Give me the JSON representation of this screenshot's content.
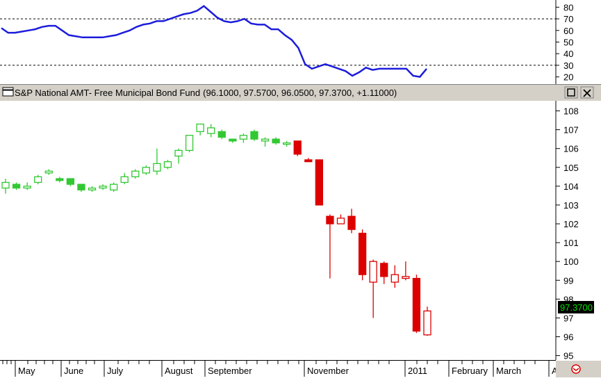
{
  "chart_data": [
    {
      "type": "line",
      "ylim": [
        15,
        85
      ],
      "yticks": [
        20,
        30,
        40,
        50,
        60,
        70,
        80
      ],
      "reference_lines": [
        30,
        70
      ],
      "line_color": "#1c1cdc",
      "values": [
        62,
        58,
        58,
        59,
        60,
        61,
        63,
        64,
        64,
        60,
        56,
        55,
        54,
        54,
        54,
        54,
        55,
        56,
        58,
        60,
        63,
        65,
        66,
        68,
        68,
        70,
        72,
        74,
        75,
        77,
        81,
        76,
        71,
        68,
        67,
        68,
        70,
        66,
        65,
        65,
        61,
        61,
        56,
        52,
        45,
        31,
        27,
        29,
        31,
        29,
        27,
        25,
        21,
        24,
        28,
        26,
        27,
        27,
        27,
        27,
        27,
        21,
        20,
        27
      ]
    },
    {
      "type": "candlestick",
      "title": "S&P National AMT- Free Municipal Bond Fund",
      "ohlc_text": "(96.1000, 97.5700, 96.0500, 97.3700, +1.11000)",
      "last_value_label": "97.3700",
      "ylim": [
        94.8,
        108.5
      ],
      "yticks": [
        95,
        96,
        97,
        98,
        99,
        100,
        101,
        102,
        103,
        104,
        105,
        106,
        107,
        108
      ],
      "xticks": [
        "May",
        "June",
        "July",
        "August",
        "September",
        "November",
        "2011",
        "February",
        "March",
        "A"
      ],
      "colors": {
        "up": "#32c832",
        "down": "#dc0000",
        "highlight_bg": "#000000",
        "highlight_fg": "#00e000"
      },
      "candles": [
        {
          "o": 103.9,
          "h": 104.4,
          "l": 103.6,
          "c": 104.2,
          "up": true,
          "solid": false
        },
        {
          "o": 104.1,
          "h": 104.2,
          "l": 103.8,
          "c": 103.9,
          "up": true,
          "solid": true
        },
        {
          "o": 103.9,
          "h": 104.2,
          "l": 103.8,
          "c": 104.0,
          "up": true,
          "solid": false
        },
        {
          "o": 104.2,
          "h": 104.6,
          "l": 104.1,
          "c": 104.5,
          "up": true,
          "solid": false
        },
        {
          "o": 104.7,
          "h": 104.9,
          "l": 104.6,
          "c": 104.8,
          "up": true,
          "solid": false
        },
        {
          "o": 104.4,
          "h": 104.5,
          "l": 104.2,
          "c": 104.3,
          "up": true,
          "solid": true
        },
        {
          "o": 104.4,
          "h": 104.4,
          "l": 104.0,
          "c": 104.1,
          "up": true,
          "solid": true
        },
        {
          "o": 104.1,
          "h": 104.1,
          "l": 103.7,
          "c": 103.8,
          "up": true,
          "solid": true
        },
        {
          "o": 103.8,
          "h": 104.0,
          "l": 103.7,
          "c": 103.9,
          "up": true,
          "solid": false
        },
        {
          "o": 103.9,
          "h": 104.1,
          "l": 103.8,
          "c": 104.0,
          "up": true,
          "solid": false
        },
        {
          "o": 103.8,
          "h": 104.2,
          "l": 103.7,
          "c": 104.1,
          "up": true,
          "solid": false
        },
        {
          "o": 104.2,
          "h": 104.7,
          "l": 104.1,
          "c": 104.5,
          "up": true,
          "solid": false
        },
        {
          "o": 104.5,
          "h": 104.9,
          "l": 104.4,
          "c": 104.8,
          "up": true,
          "solid": false
        },
        {
          "o": 104.7,
          "h": 105.1,
          "l": 104.6,
          "c": 105.0,
          "up": true,
          "solid": false
        },
        {
          "o": 104.8,
          "h": 106.0,
          "l": 104.6,
          "c": 105.2,
          "up": true,
          "solid": false
        },
        {
          "o": 105.0,
          "h": 105.4,
          "l": 104.9,
          "c": 105.3,
          "up": true,
          "solid": false
        },
        {
          "o": 105.6,
          "h": 106.0,
          "l": 105.2,
          "c": 105.9,
          "up": true,
          "solid": false
        },
        {
          "o": 105.9,
          "h": 106.7,
          "l": 105.8,
          "c": 106.7,
          "up": true,
          "solid": false
        },
        {
          "o": 106.9,
          "h": 107.3,
          "l": 106.7,
          "c": 107.3,
          "up": true,
          "solid": false
        },
        {
          "o": 106.8,
          "h": 107.3,
          "l": 106.6,
          "c": 107.1,
          "up": true,
          "solid": false
        },
        {
          "o": 106.9,
          "h": 107.0,
          "l": 106.5,
          "c": 106.6,
          "up": true,
          "solid": true
        },
        {
          "o": 106.5,
          "h": 106.5,
          "l": 106.3,
          "c": 106.4,
          "up": true,
          "solid": true
        },
        {
          "o": 106.5,
          "h": 106.8,
          "l": 106.3,
          "c": 106.7,
          "up": true,
          "solid": false
        },
        {
          "o": 106.9,
          "h": 107.0,
          "l": 106.4,
          "c": 106.5,
          "up": true,
          "solid": true
        },
        {
          "o": 106.4,
          "h": 106.6,
          "l": 106.1,
          "c": 106.5,
          "up": true,
          "solid": false
        },
        {
          "o": 106.5,
          "h": 106.6,
          "l": 106.2,
          "c": 106.3,
          "up": true,
          "solid": true
        },
        {
          "o": 106.3,
          "h": 106.4,
          "l": 106.1,
          "c": 106.3,
          "up": true,
          "solid": false
        },
        {
          "o": 106.4,
          "h": 106.4,
          "l": 105.6,
          "c": 105.7,
          "up": false,
          "solid": true
        },
        {
          "o": 105.4,
          "h": 105.5,
          "l": 105.3,
          "c": 105.3,
          "up": false,
          "solid": true
        },
        {
          "o": 105.4,
          "h": 105.4,
          "l": 103.0,
          "c": 103.0,
          "up": false,
          "solid": true
        },
        {
          "o": 102.4,
          "h": 102.5,
          "l": 99.1,
          "c": 102.0,
          "up": false,
          "solid": true
        },
        {
          "o": 102.0,
          "h": 102.5,
          "l": 102.0,
          "c": 102.3,
          "up": false,
          "solid": false
        },
        {
          "o": 102.4,
          "h": 102.8,
          "l": 101.5,
          "c": 101.7,
          "up": false,
          "solid": true
        },
        {
          "o": 101.5,
          "h": 101.7,
          "l": 99.0,
          "c": 99.3,
          "up": false,
          "solid": true
        },
        {
          "o": 98.9,
          "h": 100.1,
          "l": 97.0,
          "c": 100.0,
          "up": false,
          "solid": false
        },
        {
          "o": 99.9,
          "h": 100.0,
          "l": 98.8,
          "c": 99.2,
          "up": false,
          "solid": true
        },
        {
          "o": 98.9,
          "h": 99.8,
          "l": 98.6,
          "c": 99.3,
          "up": false,
          "solid": false
        },
        {
          "o": 99.1,
          "h": 100.0,
          "l": 99.0,
          "c": 99.2,
          "up": false,
          "solid": false
        },
        {
          "o": 99.1,
          "h": 99.3,
          "l": 96.2,
          "c": 96.3,
          "up": false,
          "solid": true
        },
        {
          "o": 96.1,
          "h": 97.6,
          "l": 96.05,
          "c": 97.37,
          "up": false,
          "solid": false
        }
      ]
    }
  ]
}
